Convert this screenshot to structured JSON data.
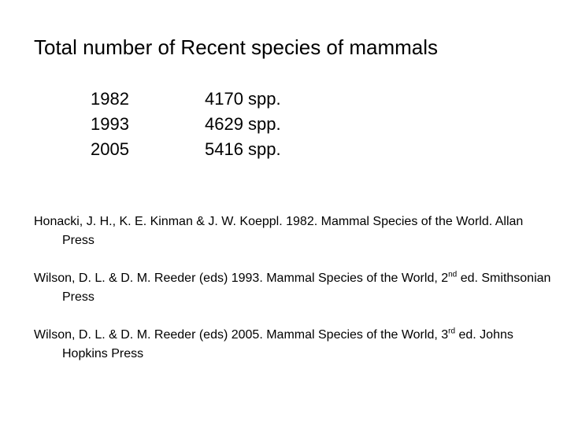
{
  "title": "Total number of Recent species of mammals",
  "counts": [
    {
      "year": "1982",
      "count": "4170 spp."
    },
    {
      "year": "1993",
      "count": "4629 spp."
    },
    {
      "year": "2005",
      "count": "5416 spp."
    }
  ],
  "references": [
    {
      "text": "Honacki, J. H., K. E. Kinman & J. W. Koeppl.  1982.  Mammal Species of the World. Allan Press"
    },
    {
      "text_before": "Wilson, D. L. & D. M. Reeder (eds) 1993. Mammal Species of the World, 2",
      "superscript": "nd",
      "text_after": " ed. Smithsonian Press"
    },
    {
      "text_before": "Wilson, D. L. & D. M. Reeder (eds) 2005. Mammal Species of the World, 3",
      "superscript": "rd",
      "text_after": " ed. Johns Hopkins Press"
    }
  ]
}
